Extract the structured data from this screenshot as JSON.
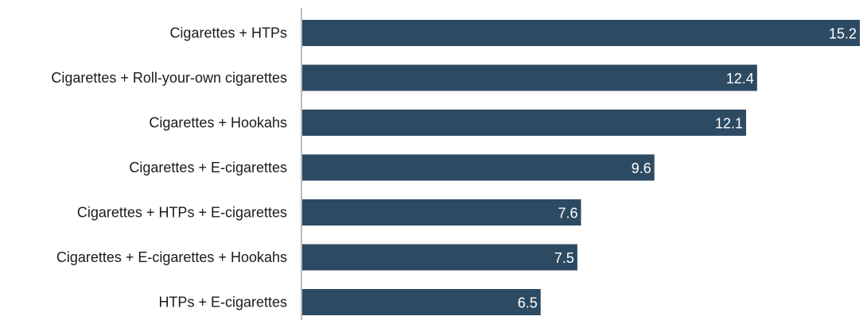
{
  "chart_data": {
    "type": "bar",
    "orientation": "horizontal",
    "categories": [
      "Cigarettes + HTPs",
      "Cigarettes + Roll-your-own cigarettes",
      "Cigarettes + Hookahs",
      "Cigarettes + E-cigarettes",
      "Cigarettes + HTPs + E-cigarettes",
      "Cigarettes + E-cigarettes + Hookahs",
      "HTPs + E-cigarettes"
    ],
    "values": [
      15.2,
      12.4,
      12.1,
      9.6,
      7.6,
      7.5,
      6.5
    ],
    "value_labels": [
      "15.2",
      "12.4",
      "12.1",
      "9.6",
      "7.6",
      "7.5",
      "6.5"
    ],
    "xlim": [
      0,
      15.2
    ],
    "grid": false,
    "legend": "none",
    "bar_color": "#2d4a63",
    "value_label_color": "#ffffff"
  }
}
